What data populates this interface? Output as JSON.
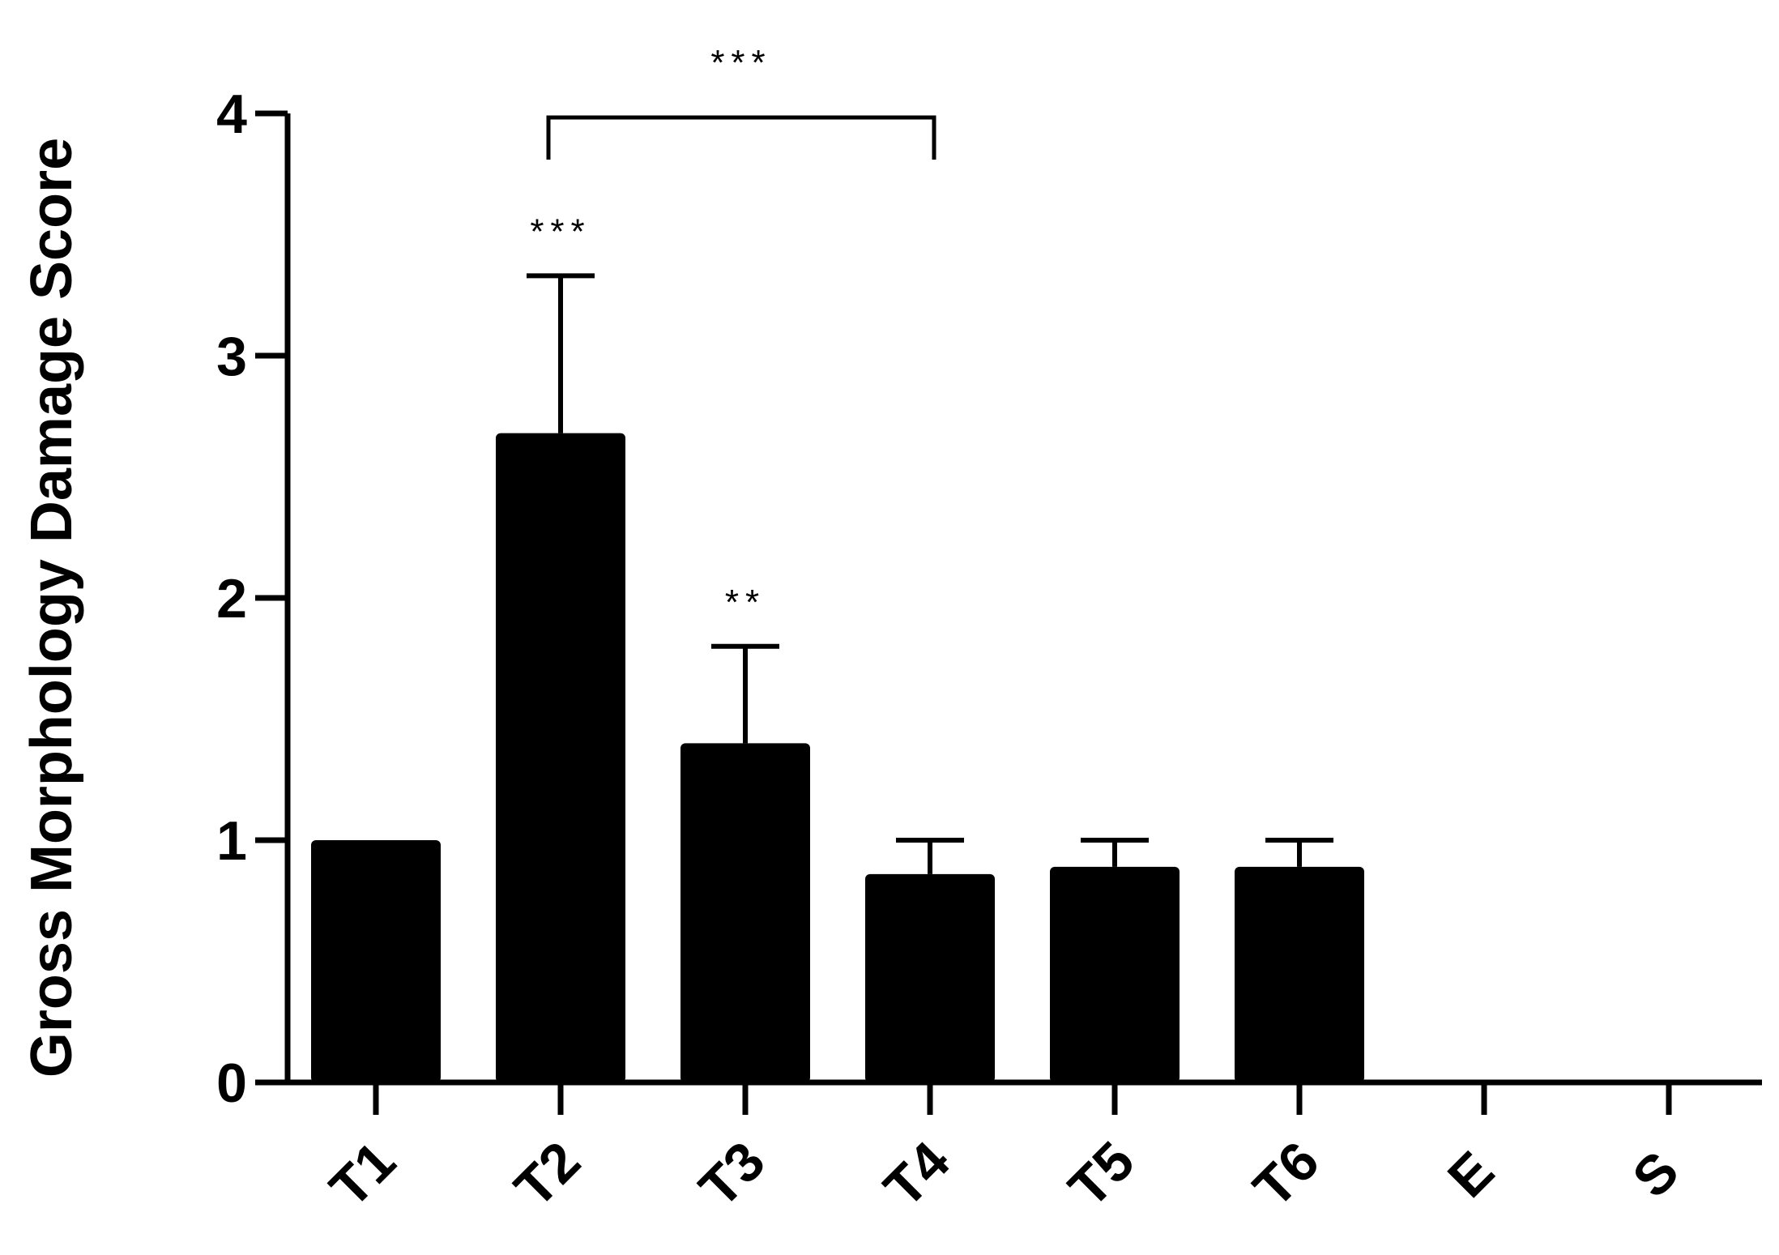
{
  "chart_data": {
    "type": "bar",
    "title": "",
    "xlabel": "",
    "ylabel": "Gross Morphology Damage Score",
    "categories": [
      "T1",
      "T2",
      "T3",
      "T4",
      "T5",
      "T6",
      "E",
      "S"
    ],
    "values": [
      1.0,
      2.68,
      1.4,
      0.86,
      0.89,
      0.89,
      0,
      0
    ],
    "error_upper": [
      1.0,
      3.33,
      1.8,
      1.0,
      1.0,
      1.0,
      0,
      0
    ],
    "yticks": [
      "0",
      "1",
      "2",
      "3",
      "4"
    ],
    "ylim": [
      0,
      4
    ],
    "grid": false,
    "legend": "none",
    "bar_color": "#000000",
    "annotations": [
      {
        "category": "T2",
        "text": "***"
      },
      {
        "category": "T3",
        "text": "**"
      }
    ],
    "bracket": {
      "from": "T2",
      "to": "T4",
      "text": "***"
    }
  }
}
